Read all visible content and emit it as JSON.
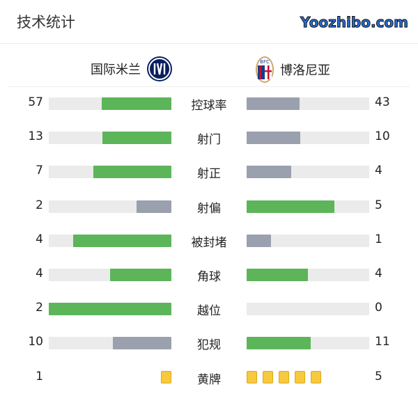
{
  "title": "技术统计",
  "home": {
    "name": "国际米兰",
    "logo": "inter-milan-logo"
  },
  "away": {
    "name": "博洛尼亚",
    "logo": "bologna-fc-logo",
    "logo_text": "BFC"
  },
  "colors": {
    "win": "#5db55a",
    "lose": "#9aa0ae",
    "track": "#ebebeb",
    "card": "#f9c93d"
  },
  "stats": [
    {
      "label": "控球率",
      "home": 57,
      "away": 43
    },
    {
      "label": "射门",
      "home": 13,
      "away": 10
    },
    {
      "label": "射正",
      "home": 7,
      "away": 4
    },
    {
      "label": "射偏",
      "home": 2,
      "away": 5
    },
    {
      "label": "被封堵",
      "home": 4,
      "away": 1
    },
    {
      "label": "角球",
      "home": 4,
      "away": 4
    },
    {
      "label": "越位",
      "home": 2,
      "away": 0
    },
    {
      "label": "犯规",
      "home": 10,
      "away": 11
    }
  ],
  "yellow": {
    "label": "黄牌",
    "home": 1,
    "away": 5
  },
  "watermark": "Yoozhibo.com"
}
